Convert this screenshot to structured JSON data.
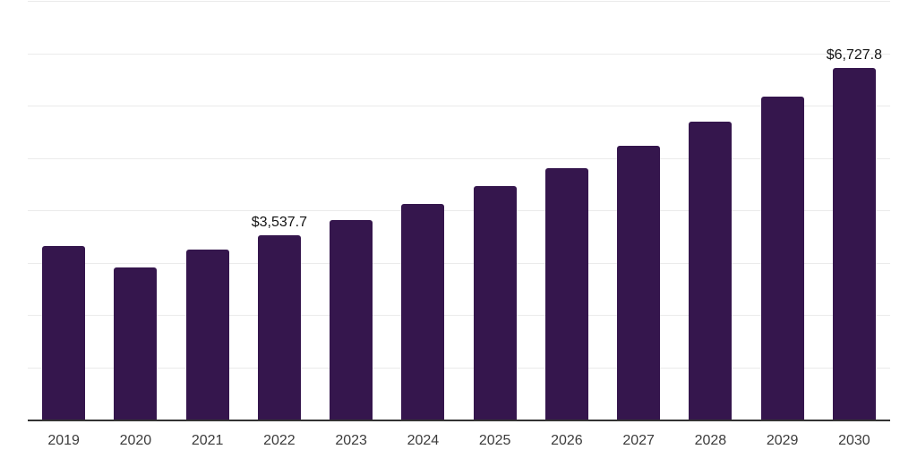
{
  "chart_data": {
    "type": "bar",
    "categories": [
      "2019",
      "2020",
      "2021",
      "2022",
      "2023",
      "2024",
      "2025",
      "2026",
      "2027",
      "2028",
      "2029",
      "2030"
    ],
    "values": [
      3330,
      2915,
      3260,
      3537.7,
      3830,
      4145,
      4475,
      4820,
      5240,
      5705,
      6190,
      6727.8
    ],
    "data_labels": [
      "",
      "",
      "",
      "$3,537.7",
      "",
      "",
      "",
      "",
      "",
      "",
      "",
      "$6,727.8"
    ],
    "title": "",
    "xlabel": "",
    "ylabel": "",
    "ylim": [
      0,
      8000
    ],
    "gridline_step": 1000,
    "grid": "horizontal",
    "legend_position": "none",
    "y_axis_labels_visible": false
  },
  "colors": {
    "bar": "#35164d",
    "axis": "#333333",
    "gridline": "#ebebeb",
    "tick_text": "#3c3c3c",
    "data_label_text": "#141414",
    "background": "#ffffff"
  }
}
